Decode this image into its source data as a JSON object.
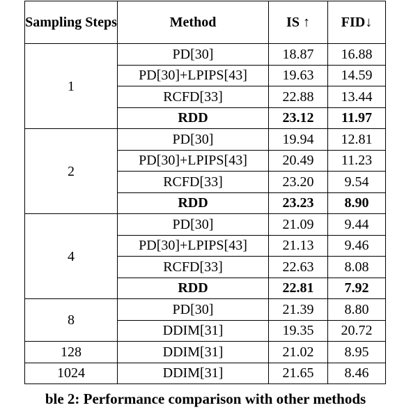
{
  "table": {
    "header": [
      "Sampling Steps",
      "Method",
      "IS ↑",
      "FID↓"
    ],
    "groups": [
      {
        "steps": "1",
        "rows": [
          {
            "method": "PD[30]",
            "is": "18.87",
            "fid": "16.88",
            "bold": false
          },
          {
            "method": "PD[30]+LPIPS[43]",
            "is": "19.63",
            "fid": "14.59",
            "bold": false
          },
          {
            "method": "RCFD[33]",
            "is": "22.88",
            "fid": "13.44",
            "bold": false
          },
          {
            "method": "RDD",
            "is": "23.12",
            "fid": "11.97",
            "bold": true
          }
        ]
      },
      {
        "steps": "2",
        "rows": [
          {
            "method": "PD[30]",
            "is": "19.94",
            "fid": "12.81",
            "bold": false
          },
          {
            "method": "PD[30]+LPIPS[43]",
            "is": "20.49",
            "fid": "11.23",
            "bold": false
          },
          {
            "method": "RCFD[33]",
            "is": "23.20",
            "fid": "9.54",
            "bold": false
          },
          {
            "method": "RDD",
            "is": "23.23",
            "fid": "8.90",
            "bold": true
          }
        ]
      },
      {
        "steps": "4",
        "rows": [
          {
            "method": "PD[30]",
            "is": "21.09",
            "fid": "9.44",
            "bold": false
          },
          {
            "method": "PD[30]+LPIPS[43]",
            "is": "21.13",
            "fid": "9.46",
            "bold": false
          },
          {
            "method": "RCFD[33]",
            "is": "22.63",
            "fid": "8.08",
            "bold": false
          },
          {
            "method": "RDD",
            "is": "22.81",
            "fid": "7.92",
            "bold": true
          }
        ]
      },
      {
        "steps": "8",
        "rows": [
          {
            "method": "PD[30]",
            "is": "21.39",
            "fid": "8.80",
            "bold": false
          },
          {
            "method": "DDIM[31]",
            "is": "19.35",
            "fid": "20.72",
            "bold": false
          }
        ]
      },
      {
        "steps": "128",
        "rows": [
          {
            "method": "DDIM[31]",
            "is": "21.02",
            "fid": "8.95",
            "bold": false
          }
        ]
      },
      {
        "steps": "1024",
        "rows": [
          {
            "method": "DDIM[31]",
            "is": "21.65",
            "fid": "8.46",
            "bold": false
          }
        ]
      }
    ]
  },
  "caption": "ble 2: Performance comparison with other methods"
}
